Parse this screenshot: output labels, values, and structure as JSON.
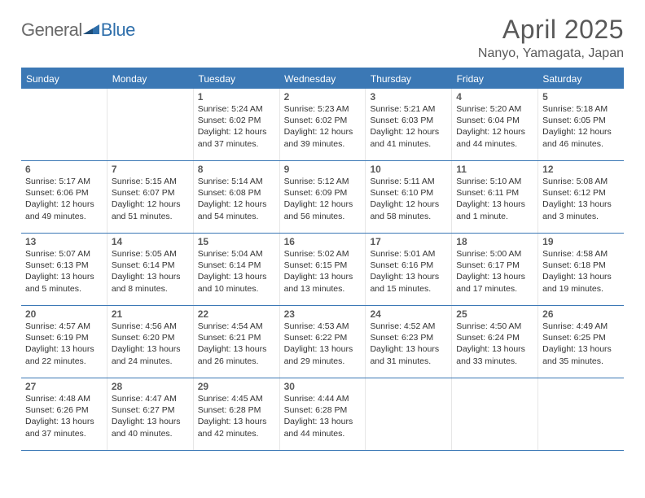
{
  "brand": {
    "part1": "General",
    "part2": "Blue"
  },
  "title": "April 2025",
  "location": "Nanyo, Yamagata, Japan",
  "colors": {
    "header_bar": "#3b78b5",
    "rule": "#3b78b5",
    "text": "#333333",
    "muted": "#5a5a5a",
    "logo_gray": "#6a6a6a",
    "logo_blue": "#2f6fab",
    "background": "#ffffff"
  },
  "weekdays": [
    "Sunday",
    "Monday",
    "Tuesday",
    "Wednesday",
    "Thursday",
    "Friday",
    "Saturday"
  ],
  "weeks": [
    [
      null,
      null,
      {
        "n": "1",
        "sr": "5:24 AM",
        "ss": "6:02 PM",
        "dl": "12 hours and 37 minutes."
      },
      {
        "n": "2",
        "sr": "5:23 AM",
        "ss": "6:02 PM",
        "dl": "12 hours and 39 minutes."
      },
      {
        "n": "3",
        "sr": "5:21 AM",
        "ss": "6:03 PM",
        "dl": "12 hours and 41 minutes."
      },
      {
        "n": "4",
        "sr": "5:20 AM",
        "ss": "6:04 PM",
        "dl": "12 hours and 44 minutes."
      },
      {
        "n": "5",
        "sr": "5:18 AM",
        "ss": "6:05 PM",
        "dl": "12 hours and 46 minutes."
      }
    ],
    [
      {
        "n": "6",
        "sr": "5:17 AM",
        "ss": "6:06 PM",
        "dl": "12 hours and 49 minutes."
      },
      {
        "n": "7",
        "sr": "5:15 AM",
        "ss": "6:07 PM",
        "dl": "12 hours and 51 minutes."
      },
      {
        "n": "8",
        "sr": "5:14 AM",
        "ss": "6:08 PM",
        "dl": "12 hours and 54 minutes."
      },
      {
        "n": "9",
        "sr": "5:12 AM",
        "ss": "6:09 PM",
        "dl": "12 hours and 56 minutes."
      },
      {
        "n": "10",
        "sr": "5:11 AM",
        "ss": "6:10 PM",
        "dl": "12 hours and 58 minutes."
      },
      {
        "n": "11",
        "sr": "5:10 AM",
        "ss": "6:11 PM",
        "dl": "13 hours and 1 minute."
      },
      {
        "n": "12",
        "sr": "5:08 AM",
        "ss": "6:12 PM",
        "dl": "13 hours and 3 minutes."
      }
    ],
    [
      {
        "n": "13",
        "sr": "5:07 AM",
        "ss": "6:13 PM",
        "dl": "13 hours and 5 minutes."
      },
      {
        "n": "14",
        "sr": "5:05 AM",
        "ss": "6:14 PM",
        "dl": "13 hours and 8 minutes."
      },
      {
        "n": "15",
        "sr": "5:04 AM",
        "ss": "6:14 PM",
        "dl": "13 hours and 10 minutes."
      },
      {
        "n": "16",
        "sr": "5:02 AM",
        "ss": "6:15 PM",
        "dl": "13 hours and 13 minutes."
      },
      {
        "n": "17",
        "sr": "5:01 AM",
        "ss": "6:16 PM",
        "dl": "13 hours and 15 minutes."
      },
      {
        "n": "18",
        "sr": "5:00 AM",
        "ss": "6:17 PM",
        "dl": "13 hours and 17 minutes."
      },
      {
        "n": "19",
        "sr": "4:58 AM",
        "ss": "6:18 PM",
        "dl": "13 hours and 19 minutes."
      }
    ],
    [
      {
        "n": "20",
        "sr": "4:57 AM",
        "ss": "6:19 PM",
        "dl": "13 hours and 22 minutes."
      },
      {
        "n": "21",
        "sr": "4:56 AM",
        "ss": "6:20 PM",
        "dl": "13 hours and 24 minutes."
      },
      {
        "n": "22",
        "sr": "4:54 AM",
        "ss": "6:21 PM",
        "dl": "13 hours and 26 minutes."
      },
      {
        "n": "23",
        "sr": "4:53 AM",
        "ss": "6:22 PM",
        "dl": "13 hours and 29 minutes."
      },
      {
        "n": "24",
        "sr": "4:52 AM",
        "ss": "6:23 PM",
        "dl": "13 hours and 31 minutes."
      },
      {
        "n": "25",
        "sr": "4:50 AM",
        "ss": "6:24 PM",
        "dl": "13 hours and 33 minutes."
      },
      {
        "n": "26",
        "sr": "4:49 AM",
        "ss": "6:25 PM",
        "dl": "13 hours and 35 minutes."
      }
    ],
    [
      {
        "n": "27",
        "sr": "4:48 AM",
        "ss": "6:26 PM",
        "dl": "13 hours and 37 minutes."
      },
      {
        "n": "28",
        "sr": "4:47 AM",
        "ss": "6:27 PM",
        "dl": "13 hours and 40 minutes."
      },
      {
        "n": "29",
        "sr": "4:45 AM",
        "ss": "6:28 PM",
        "dl": "13 hours and 42 minutes."
      },
      {
        "n": "30",
        "sr": "4:44 AM",
        "ss": "6:28 PM",
        "dl": "13 hours and 44 minutes."
      },
      null,
      null,
      null
    ]
  ],
  "labels": {
    "sunrise": "Sunrise:",
    "sunset": "Sunset:",
    "daylight": "Daylight:"
  }
}
